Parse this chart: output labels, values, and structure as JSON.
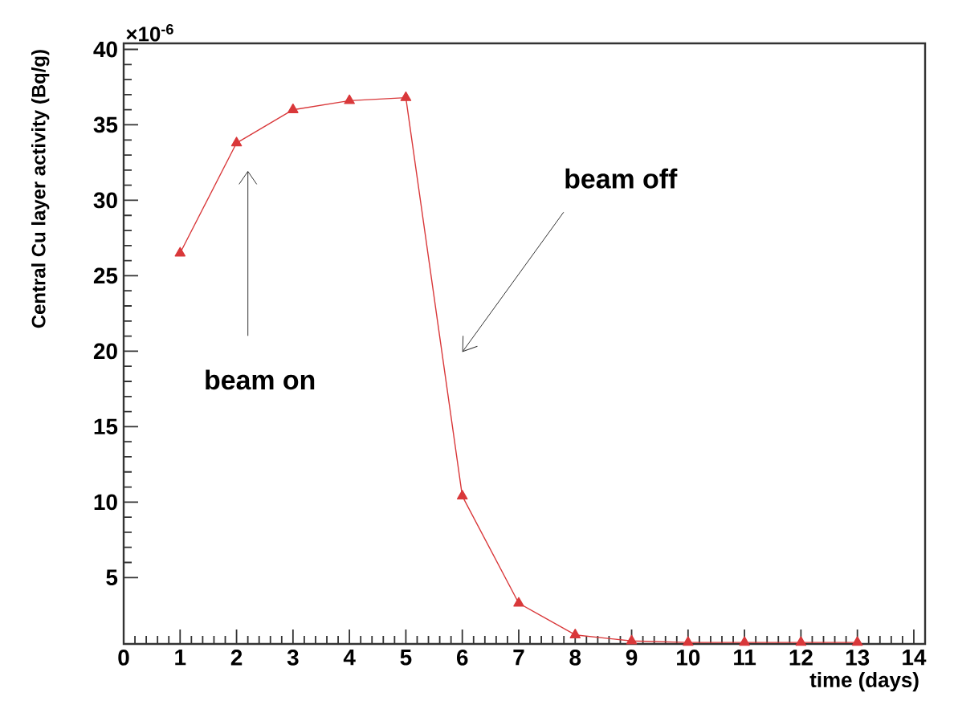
{
  "chart_data": {
    "type": "line",
    "xlabel": "time (days)",
    "ylabel": "Central Cu layer activity (Bq/g)",
    "x": [
      1,
      2,
      3,
      4,
      5,
      6,
      7,
      8,
      9,
      10,
      11,
      12,
      13
    ],
    "series": [
      {
        "color": "#d9383a",
        "values": [
          26.5,
          33.8,
          36.0,
          36.6,
          36.8,
          10.4,
          3.3,
          1.2,
          0.8,
          0.7,
          0.7,
          0.7,
          0.7
        ]
      }
    ],
    "marker": "triangle",
    "line_style": "solid",
    "xlim": [
      0,
      14.2
    ],
    "ylim": [
      0.6,
      40.4
    ],
    "xticks": [
      0,
      1,
      2,
      3,
      4,
      5,
      6,
      7,
      8,
      9,
      10,
      11,
      12,
      13,
      14
    ],
    "yticks": [
      5,
      10,
      15,
      20,
      25,
      30,
      35,
      40
    ],
    "annotations": [
      "×10$^{-6}$",
      "beam on",
      "beam off"
    ]
  }
}
